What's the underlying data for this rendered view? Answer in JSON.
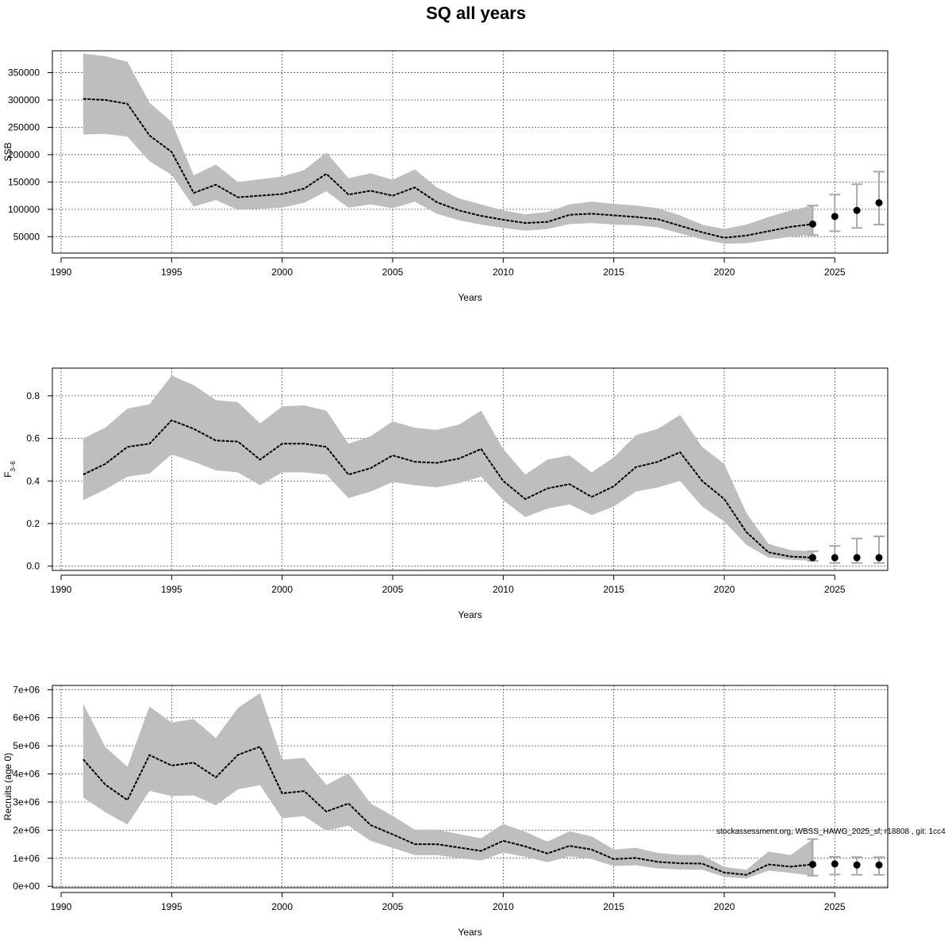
{
  "title": "SQ all years",
  "footnote": "stockassessment.org, WBSS_HAWG_2025_sf, r18808 , git: 1cc4",
  "colors": {
    "band": "#bebebe",
    "line": "#000000",
    "grid": "#555555",
    "projection_bar": "#a8a8a8",
    "frame": "#000000"
  },
  "chart_data": [
    {
      "type": "line",
      "name": "ssb",
      "xlabel": "Years",
      "ylabel": "SSB",
      "xlim": [
        1990,
        2027
      ],
      "ylim": [
        20000,
        390000
      ],
      "x_ticks": [
        1990,
        1995,
        2000,
        2005,
        2010,
        2015,
        2020,
        2025
      ],
      "y_ticks": [
        50000,
        100000,
        150000,
        200000,
        250000,
        300000,
        350000
      ],
      "y_tick_labels": [
        "50000",
        "100000",
        "150000",
        "200000",
        "250000",
        "300000",
        "350000"
      ],
      "grid": true,
      "years": [
        1991,
        1992,
        1993,
        1994,
        1995,
        1996,
        1997,
        1998,
        1999,
        2000,
        2001,
        2002,
        2003,
        2004,
        2005,
        2006,
        2007,
        2008,
        2009,
        2010,
        2011,
        2012,
        2013,
        2014,
        2015,
        2016,
        2017,
        2018,
        2019,
        2020,
        2021,
        2022,
        2023,
        2024
      ],
      "estimate": [
        302000,
        300000,
        293000,
        235000,
        205000,
        130000,
        145000,
        122000,
        125000,
        128000,
        138000,
        165000,
        127000,
        134000,
        125000,
        140000,
        113000,
        98000,
        88000,
        81000,
        75000,
        77000,
        90000,
        92000,
        89000,
        86000,
        82000,
        70000,
        58000,
        48000,
        52000,
        60000,
        68000,
        73000
      ],
      "lower": [
        237000,
        238000,
        233000,
        188000,
        163000,
        105000,
        117000,
        99000,
        101000,
        103000,
        112000,
        133000,
        103000,
        109000,
        102000,
        114000,
        92000,
        80000,
        72000,
        66000,
        61000,
        64000,
        73000,
        75000,
        72000,
        71000,
        67000,
        56000,
        45000,
        37000,
        38000,
        44000,
        50000,
        53000
      ],
      "upper": [
        385000,
        380000,
        370000,
        295000,
        260000,
        162000,
        182000,
        150000,
        155000,
        160000,
        172000,
        204000,
        157000,
        166000,
        154000,
        173000,
        140000,
        120000,
        109000,
        98000,
        91000,
        95000,
        109000,
        114000,
        110000,
        107000,
        102000,
        89000,
        72000,
        64000,
        72000,
        86000,
        98000,
        107000
      ],
      "projection": {
        "years": [
          2024,
          2025,
          2026,
          2027
        ],
        "median": [
          73000,
          87000,
          98000,
          112000
        ],
        "lower": [
          53000,
          60000,
          66000,
          72000
        ],
        "upper": [
          107000,
          127000,
          146000,
          169000
        ]
      }
    },
    {
      "type": "line",
      "name": "fbar",
      "xlabel": "Years",
      "ylabel": "F",
      "ylabel_sub": "3–6",
      "xlim": [
        1990,
        2027
      ],
      "ylim": [
        -0.02,
        0.93
      ],
      "x_ticks": [
        1990,
        1995,
        2000,
        2005,
        2010,
        2015,
        2020,
        2025
      ],
      "y_ticks": [
        0.0,
        0.2,
        0.4,
        0.6,
        0.8
      ],
      "y_tick_labels": [
        "0.0",
        "0.2",
        "0.4",
        "0.6",
        "0.8"
      ],
      "grid": true,
      "years": [
        1991,
        1992,
        1993,
        1994,
        1995,
        1996,
        1997,
        1998,
        1999,
        2000,
        2001,
        2002,
        2003,
        2004,
        2005,
        2006,
        2007,
        2008,
        2009,
        2010,
        2011,
        2012,
        2013,
        2014,
        2015,
        2016,
        2017,
        2018,
        2019,
        2020,
        2021,
        2022,
        2023,
        2024
      ],
      "estimate": [
        0.43,
        0.48,
        0.56,
        0.575,
        0.685,
        0.645,
        0.59,
        0.585,
        0.5,
        0.575,
        0.575,
        0.56,
        0.43,
        0.46,
        0.52,
        0.49,
        0.485,
        0.505,
        0.55,
        0.4,
        0.315,
        0.365,
        0.385,
        0.325,
        0.375,
        0.465,
        0.49,
        0.535,
        0.4,
        0.315,
        0.16,
        0.065,
        0.045,
        0.04
      ],
      "lower": [
        0.31,
        0.36,
        0.42,
        0.435,
        0.525,
        0.49,
        0.45,
        0.44,
        0.38,
        0.44,
        0.44,
        0.43,
        0.32,
        0.35,
        0.395,
        0.38,
        0.37,
        0.39,
        0.42,
        0.31,
        0.23,
        0.27,
        0.29,
        0.24,
        0.28,
        0.35,
        0.37,
        0.4,
        0.28,
        0.21,
        0.1,
        0.04,
        0.03,
        0.025
      ],
      "upper": [
        0.6,
        0.65,
        0.74,
        0.76,
        0.895,
        0.85,
        0.78,
        0.77,
        0.67,
        0.75,
        0.755,
        0.73,
        0.575,
        0.61,
        0.68,
        0.65,
        0.64,
        0.665,
        0.73,
        0.55,
        0.43,
        0.5,
        0.52,
        0.44,
        0.51,
        0.615,
        0.645,
        0.71,
        0.56,
        0.48,
        0.25,
        0.105,
        0.075,
        0.07
      ],
      "projection": {
        "years": [
          2024,
          2025,
          2026,
          2027
        ],
        "median": [
          0.04,
          0.04,
          0.04,
          0.04
        ],
        "lower": [
          0.025,
          0.015,
          0.015,
          0.015
        ],
        "upper": [
          0.07,
          0.095,
          0.13,
          0.14
        ]
      }
    },
    {
      "type": "line",
      "name": "recruits",
      "xlabel": "Years",
      "ylabel": "Recruits (age 0)",
      "xlim": [
        1990,
        2027
      ],
      "ylim": [
        -50000,
        7150000
      ],
      "x_ticks": [
        1990,
        1995,
        2000,
        2005,
        2010,
        2015,
        2020,
        2025
      ],
      "y_ticks": [
        0,
        1000000,
        2000000,
        3000000,
        4000000,
        5000000,
        6000000,
        7000000
      ],
      "y_tick_labels": [
        "0e+00",
        "1e+06",
        "2e+06",
        "3e+06",
        "4e+06",
        "5e+06",
        "6e+06",
        "7e+06"
      ],
      "grid": true,
      "years": [
        1991,
        1992,
        1993,
        1994,
        1995,
        1996,
        1997,
        1998,
        1999,
        2000,
        2001,
        2002,
        2003,
        2004,
        2005,
        2006,
        2007,
        2008,
        2009,
        2010,
        2011,
        2012,
        2013,
        2014,
        2015,
        2016,
        2017,
        2018,
        2019,
        2020,
        2021,
        2022,
        2023,
        2024
      ],
      "estimate": [
        4520000,
        3620000,
        3070000,
        4670000,
        4300000,
        4400000,
        3880000,
        4680000,
        4970000,
        3310000,
        3390000,
        2660000,
        2950000,
        2180000,
        1850000,
        1500000,
        1500000,
        1380000,
        1260000,
        1620000,
        1420000,
        1170000,
        1440000,
        1310000,
        970000,
        1010000,
        870000,
        820000,
        810000,
        490000,
        410000,
        780000,
        700000,
        780000
      ],
      "lower": [
        3160000,
        2640000,
        2200000,
        3400000,
        3210000,
        3240000,
        2880000,
        3450000,
        3600000,
        2420000,
        2500000,
        1980000,
        2160000,
        1620000,
        1370000,
        1110000,
        1110000,
        1000000,
        920000,
        1200000,
        1050000,
        860000,
        1070000,
        970000,
        720000,
        750000,
        640000,
        600000,
        590000,
        340000,
        280000,
        560000,
        480000,
        380000
      ],
      "upper": [
        6500000,
        4960000,
        4260000,
        6400000,
        5830000,
        5950000,
        5280000,
        6350000,
        6880000,
        4510000,
        4570000,
        3610000,
        4020000,
        2950000,
        2510000,
        2020000,
        2020000,
        1860000,
        1710000,
        2220000,
        1940000,
        1590000,
        1960000,
        1780000,
        1310000,
        1370000,
        1190000,
        1120000,
        1110000,
        690000,
        590000,
        1240000,
        1110000,
        1680000
      ],
      "projection": {
        "years": [
          2024,
          2025,
          2026,
          2027
        ],
        "median": [
          780000,
          800000,
          760000,
          760000
        ],
        "lower": [
          380000,
          420000,
          410000,
          410000
        ],
        "upper": [
          1680000,
          1050000,
          1040000,
          1040000
        ]
      }
    }
  ]
}
